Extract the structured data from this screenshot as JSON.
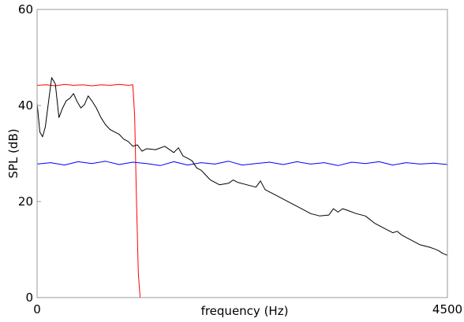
{
  "chart_data": {
    "type": "line",
    "title": "",
    "xlabel": "frequency (Hz)",
    "ylabel": "SPL (dB)",
    "xlim": [
      0,
      4500
    ],
    "ylim": [
      0,
      60
    ],
    "x_ticks": [
      {
        "value": 0,
        "label": "0"
      },
      {
        "value": 4500,
        "label": "4500"
      }
    ],
    "y_ticks": [
      {
        "value": 0,
        "label": "0"
      },
      {
        "value": 20,
        "label": "20"
      },
      {
        "value": 40,
        "label": "40"
      },
      {
        "value": 60,
        "label": "60"
      }
    ],
    "grid": false,
    "series": [
      {
        "color": "#ff0000",
        "x": [
          0,
          100,
          200,
          300,
          400,
          500,
          600,
          700,
          800,
          900,
          1000,
          1050,
          1070,
          1090,
          1110,
          1130,
          1200,
          1500,
          2000,
          2500,
          3000,
          3500,
          4000,
          4500
        ],
        "y": [
          44.2,
          44.3,
          44.1,
          44.4,
          44.2,
          44.3,
          44.1,
          44.3,
          44.2,
          44.4,
          44.2,
          44.3,
          38,
          20,
          5,
          0,
          0,
          0,
          0,
          0,
          0,
          0,
          0,
          0
        ]
      },
      {
        "color": "#0000ff",
        "x": [
          0,
          150,
          300,
          450,
          600,
          750,
          900,
          1050,
          1200,
          1350,
          1500,
          1650,
          1800,
          1950,
          2100,
          2250,
          2400,
          2550,
          2700,
          2850,
          3000,
          3150,
          3300,
          3450,
          3600,
          3750,
          3900,
          4050,
          4200,
          4350,
          4500
        ],
        "y": [
          27.8,
          28.1,
          27.6,
          28.3,
          27.9,
          28.4,
          27.7,
          28.2,
          27.9,
          27.5,
          28.3,
          27.6,
          28.1,
          27.8,
          28.4,
          27.6,
          27.9,
          28.2,
          27.7,
          28.3,
          27.8,
          28.1,
          27.5,
          28.2,
          27.9,
          28.3,
          27.6,
          28.1,
          27.8,
          28.0,
          27.7
        ]
      },
      {
        "color": "#000000",
        "x": [
          0,
          30,
          60,
          90,
          120,
          160,
          200,
          240,
          280,
          320,
          360,
          400,
          440,
          480,
          520,
          560,
          600,
          650,
          700,
          750,
          800,
          850,
          900,
          950,
          1000,
          1050,
          1100,
          1150,
          1200,
          1300,
          1400,
          1500,
          1550,
          1600,
          1650,
          1700,
          1750,
          1800,
          1850,
          1900,
          2000,
          2100,
          2150,
          2200,
          2300,
          2400,
          2450,
          2500,
          2600,
          2700,
          2800,
          2900,
          3000,
          3100,
          3200,
          3250,
          3300,
          3350,
          3400,
          3500,
          3600,
          3700,
          3800,
          3900,
          3950,
          4000,
          4100,
          4200,
          4300,
          4350,
          4400,
          4450,
          4500
        ],
        "y": [
          40.5,
          34.5,
          33.5,
          35.5,
          40,
          45.8,
          44.5,
          37.5,
          39.5,
          41,
          41.5,
          42.5,
          40.8,
          39.5,
          40.2,
          42,
          41,
          39.5,
          37.5,
          36,
          35,
          34.5,
          34,
          33,
          32.5,
          31.5,
          31.8,
          30.5,
          31,
          30.8,
          31.5,
          30.2,
          31.2,
          29.5,
          29,
          28.5,
          27,
          26.5,
          25.5,
          24.5,
          23.5,
          23.8,
          24.5,
          24,
          23.5,
          23,
          24.3,
          22.5,
          21.5,
          20.5,
          19.5,
          18.5,
          17.5,
          17,
          17.2,
          18.5,
          17.8,
          18.5,
          18.2,
          17.5,
          17,
          15.5,
          14.5,
          13.5,
          13.8,
          13,
          12,
          11,
          10.5,
          10.2,
          9.8,
          9.2,
          8.8
        ]
      }
    ]
  }
}
